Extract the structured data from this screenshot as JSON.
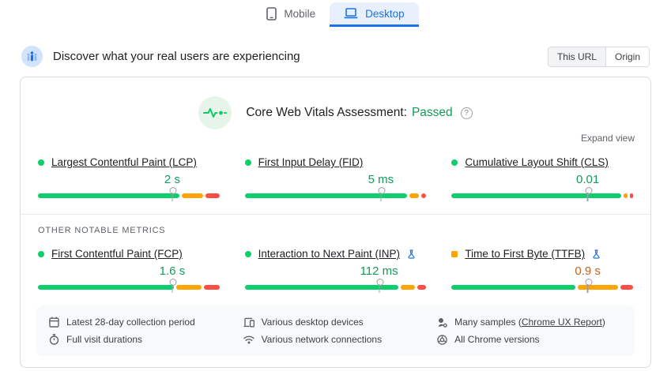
{
  "device_tabs": [
    {
      "label": "Mobile",
      "active": false
    },
    {
      "label": "Desktop",
      "active": true
    }
  ],
  "header": {
    "title": "Discover what your real users are experiencing",
    "scope_buttons": [
      {
        "label": "This URL",
        "selected": true
      },
      {
        "label": "Origin",
        "selected": false
      }
    ]
  },
  "assessment": {
    "title": "Core Web Vitals Assessment:",
    "status": "Passed",
    "expand_label": "Expand view"
  },
  "colors": {
    "good": "#0cce6b",
    "average": "#ffa400",
    "poor": "#ff4e42",
    "value_good": "#149a5a",
    "value_average": "#c2631c",
    "accent": "#1a73e8"
  },
  "core_metrics": [
    {
      "name": "Largest Contentful Paint (LCP)",
      "value": "2 s",
      "status": "good",
      "pin_percent": 74,
      "distribution": [
        80,
        12,
        8
      ],
      "experimental": false
    },
    {
      "name": "First Input Delay (FID)",
      "value": "5 ms",
      "status": "good",
      "pin_percent": 75,
      "distribution": [
        92,
        5,
        3
      ],
      "experimental": false
    },
    {
      "name": "Cumulative Layout Shift (CLS)",
      "value": "0.01",
      "status": "good",
      "pin_percent": 75,
      "distribution": [
        96,
        2,
        2
      ],
      "experimental": false
    }
  ],
  "other_metrics_label": "OTHER NOTABLE METRICS",
  "other_metrics": [
    {
      "name": "First Contentful Paint (FCP)",
      "value": "1.6 s",
      "status": "good",
      "pin_percent": 74,
      "distribution": [
        77,
        14,
        9
      ],
      "experimental": false
    },
    {
      "name": "Interaction to Next Paint (INP)",
      "value": "112 ms",
      "status": "good",
      "pin_percent": 74,
      "distribution": [
        87,
        8,
        5
      ],
      "experimental": true
    },
    {
      "name": "Time to First Byte (TTFB)",
      "value": "0.9 s",
      "status": "average",
      "pin_percent": 75,
      "distribution": [
        70,
        23,
        7
      ],
      "experimental": true
    }
  ],
  "footnotes": [
    {
      "icon": "calendar-icon",
      "text": "Latest 28-day collection period"
    },
    {
      "icon": "devices-icon",
      "text": "Various desktop devices"
    },
    {
      "icon": "samples-icon",
      "text_prefix": "Many samples (",
      "link": "Chrome UX Report",
      "text_suffix": ")"
    },
    {
      "icon": "stopwatch-icon",
      "text": "Full visit durations"
    },
    {
      "icon": "wifi-icon",
      "text": "Various network connections"
    },
    {
      "icon": "chrome-icon",
      "text": "All Chrome versions"
    }
  ]
}
